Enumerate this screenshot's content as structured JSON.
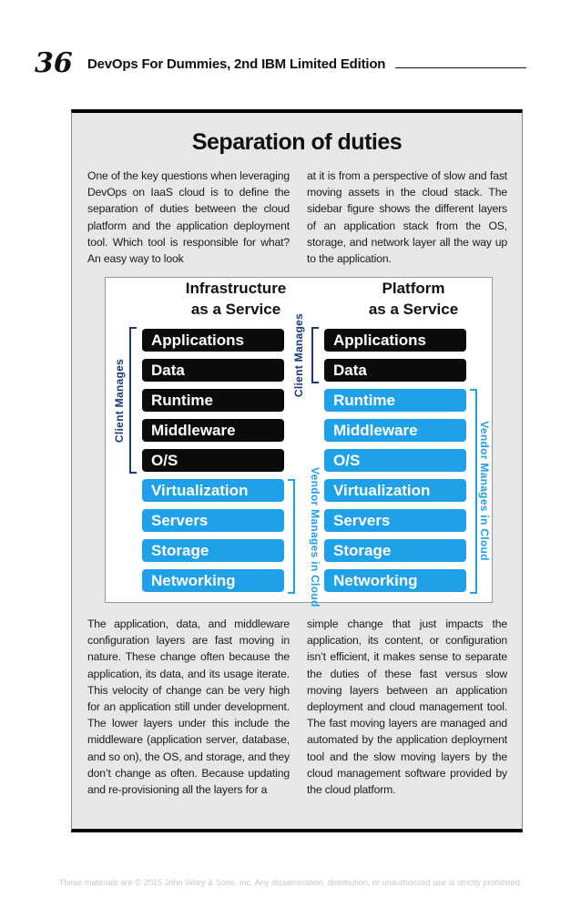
{
  "header": {
    "page_number": "36",
    "book_title": "DevOps For Dummies, 2nd IBM Limited Edition"
  },
  "sidebar": {
    "title": "Separation of duties",
    "intro_left": "One of the key questions when leveraging DevOps on IaaS cloud is to define the separation of duties between the cloud platform and the application deployment tool. Which tool is responsible for what? An easy way to look",
    "intro_right": "at it is from a perspective of slow and fast moving assets in the cloud stack. The sidebar figure shows the different layers of an application stack from the OS, storage, and network layer all the way up to the application.",
    "body_left": "The application, data, and middleware configuration layers are fast moving in nature. These change often because the application, its data, and its usage iterate. This velocity of change can be very high for an application still under development. The lower layers under this include the middleware (application server, database, and so on), the OS, and storage, and they don’t change as often. Because updating and re-provisioning all the layers for a",
    "body_right": "simple change that just impacts the application, its content, or configuration isn’t efficient, it makes sense to separate the duties of these fast versus slow moving layers between an application deployment and cloud management tool. The fast moving layers are managed and automated by the application deployment tool and the slow moving layers by the cloud management software provided by the cloud platform."
  },
  "figure": {
    "iaas": {
      "heading_line1": "Infrastructure",
      "heading_line2": "as a Service",
      "client_label": "Client Manages",
      "vendor_label": "Vendor Manages in Cloud",
      "layers": [
        "Applications",
        "Data",
        "Runtime",
        "Middleware",
        "O/S",
        "Virtualization",
        "Servers",
        "Storage",
        "Networking"
      ]
    },
    "paas": {
      "heading_line1": "Platform",
      "heading_line2": "as a Service",
      "client_label": "Client Manages",
      "vendor_label": "Vendor Manages in Cloud",
      "layers": [
        "Applications",
        "Data",
        "Runtime",
        "Middleware",
        "O/S",
        "Virtualization",
        "Servers",
        "Storage",
        "Networking"
      ]
    },
    "colors": {
      "client": "#0b0b0b",
      "vendor": "#1ea1e8"
    }
  },
  "footer": {
    "notice": "These materials are © 2015 John Wiley & Sons, Inc. Any dissemination, distribution, or unauthorized use is strictly prohibited."
  }
}
